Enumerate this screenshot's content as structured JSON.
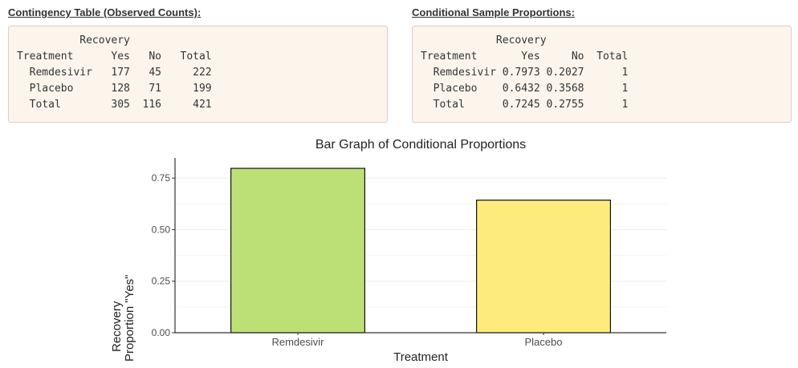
{
  "contingency": {
    "title": "Contingency Table (Observed Counts):",
    "lines": [
      "          Recovery",
      "Treatment      Yes   No   Total",
      "  Remdesivir   177   45     222",
      "  Placebo      128   71     199",
      "  Total        305  116     421"
    ]
  },
  "proportions": {
    "title": "Conditional Sample Proportions:",
    "lines": [
      "            Recovery",
      "Treatment       Yes     No  Total",
      "  Remdesivir 0.7973 0.2027      1",
      "  Placebo    0.6432 0.3568      1",
      "  Total      0.7245 0.2755      1"
    ]
  },
  "chart_data": {
    "type": "bar",
    "title": "Bar Graph of Conditional Proportions",
    "xlabel": "Treatment",
    "ylabel_lines": [
      "Recovery",
      "Proportion \"Yes\""
    ],
    "categories": [
      "Remdesivir",
      "Placebo"
    ],
    "values": [
      0.7973,
      0.6432
    ],
    "colors": [
      "#bde076",
      "#fdec7b"
    ],
    "yticks": [
      0.0,
      0.25,
      0.5,
      0.75
    ],
    "ytick_labels": [
      "0.00",
      "0.25",
      "0.50",
      "0.75"
    ],
    "ylim": [
      0,
      0.84
    ],
    "grid": true
  }
}
